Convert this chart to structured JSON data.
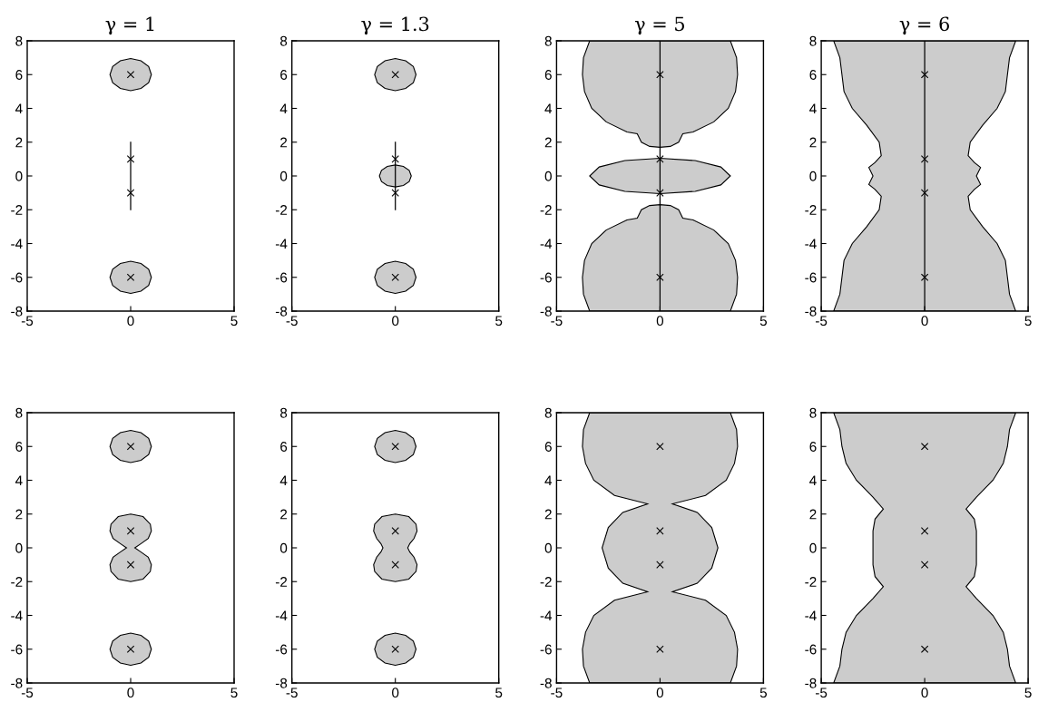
{
  "chart_data": [
    {
      "type": "area",
      "title": "γ = 1",
      "xlim": [
        -5,
        5
      ],
      "ylim": [
        -8,
        8
      ],
      "xticks": [
        -5,
        0,
        5
      ],
      "yticks": [
        -8,
        -6,
        -4,
        -2,
        0,
        2,
        4,
        6,
        8
      ],
      "grid": false,
      "series": [
        {
          "type": "area",
          "color": "#cccccc",
          "x": [
            1,
            0.87,
            0.5,
            0,
            -0.5,
            -0.87,
            -1,
            -0.87,
            -0.5,
            0,
            0.5,
            0.87
          ],
          "values": [
            6,
            6.48,
            6.82,
            6.95,
            6.82,
            6.48,
            6,
            5.52,
            5.18,
            5.05,
            5.18,
            5.52
          ]
        },
        {
          "type": "area",
          "color": "#cccccc",
          "x": [
            1,
            0.87,
            0.5,
            0,
            -0.5,
            -0.87,
            -1,
            -0.87,
            -0.5,
            0,
            0.5,
            0.87
          ],
          "values": [
            -6,
            -5.52,
            -5.18,
            -5.05,
            -5.18,
            -5.52,
            -6,
            -6.48,
            -6.82,
            -6.95,
            -6.82,
            -6.48
          ]
        },
        {
          "type": "line",
          "color": "#000000",
          "x": [
            0,
            0
          ],
          "values": [
            -2,
            2
          ]
        },
        {
          "type": "scatter",
          "color": "#000000",
          "marker": "cross",
          "x": [
            0,
            0,
            0,
            0
          ],
          "values": [
            6,
            1,
            -1,
            -6
          ]
        }
      ]
    },
    {
      "type": "area",
      "title": "γ = 1.3",
      "xlim": [
        -5,
        5
      ],
      "ylim": [
        -8,
        8
      ],
      "xticks": [
        -5,
        0,
        5
      ],
      "yticks": [
        -8,
        -6,
        -4,
        -2,
        0,
        2,
        4,
        6,
        8
      ],
      "grid": false,
      "series": [
        {
          "type": "area",
          "color": "#cccccc",
          "x": [
            1,
            0.87,
            0.5,
            0,
            -0.5,
            -0.87,
            -1,
            -0.87,
            -0.5,
            0,
            0.5,
            0.87
          ],
          "values": [
            6,
            6.48,
            6.82,
            6.95,
            6.82,
            6.48,
            6,
            5.52,
            5.18,
            5.05,
            5.18,
            5.52
          ]
        },
        {
          "type": "area",
          "color": "#cccccc",
          "x": [
            1,
            0.87,
            0.5,
            0,
            -0.5,
            -0.87,
            -1,
            -0.87,
            -0.5,
            0,
            0.5,
            0.87
          ],
          "values": [
            -6,
            -5.52,
            -5.18,
            -5.05,
            -5.18,
            -5.52,
            -6,
            -6.48,
            -6.82,
            -6.95,
            -6.82,
            -6.48
          ]
        },
        {
          "type": "area",
          "color": "#cccccc",
          "x": [
            0.77,
            0.67,
            0.39,
            0,
            -0.39,
            -0.67,
            -0.77,
            -0.67,
            -0.39,
            0,
            0.39,
            0.67
          ],
          "values": [
            0,
            0.33,
            0.56,
            0.65,
            0.56,
            0.33,
            0,
            -0.33,
            -0.56,
            -0.65,
            -0.56,
            -0.33
          ]
        },
        {
          "type": "line",
          "color": "#000000",
          "x": [
            0,
            0
          ],
          "values": [
            -2,
            2
          ]
        },
        {
          "type": "scatter",
          "color": "#000000",
          "marker": "cross",
          "x": [
            0,
            0,
            0,
            0
          ],
          "values": [
            6,
            1,
            -1,
            -6
          ]
        }
      ]
    },
    {
      "type": "area",
      "title": "γ = 5",
      "xlim": [
        -5,
        5
      ],
      "ylim": [
        -8,
        8
      ],
      "xticks": [
        -5,
        0,
        5
      ],
      "yticks": [
        -8,
        -6,
        -4,
        -2,
        0,
        2,
        4,
        6,
        8
      ],
      "grid": false,
      "series": [
        {
          "type": "area",
          "color": "#cccccc",
          "x": [
            3.4,
            3.7,
            3.75,
            3.65,
            3.3,
            2.6,
            1.6,
            1.1,
            0.9,
            0.5,
            0,
            -0.5,
            -0.9,
            -1.1,
            -1.6,
            -2.6,
            -3.3,
            -3.65,
            -3.75,
            -3.7,
            -3.4
          ],
          "values": [
            8,
            7,
            6,
            5,
            4,
            3.2,
            2.6,
            2.5,
            2.0,
            1.75,
            1.7,
            1.75,
            2.0,
            2.5,
            2.6,
            3.2,
            4,
            5,
            6,
            7,
            8
          ]
        },
        {
          "type": "area",
          "color": "#cccccc",
          "x": [
            3.4,
            2.94,
            1.7,
            0,
            -1.7,
            -2.94,
            -3.4,
            -2.94,
            -1.7,
            0,
            1.7,
            2.94
          ],
          "values": [
            0,
            0.53,
            0.91,
            1.05,
            0.91,
            0.53,
            0,
            -0.53,
            -0.91,
            -1.05,
            -0.91,
            -0.53
          ]
        },
        {
          "type": "area",
          "color": "#cccccc",
          "x": [
            3.4,
            3.7,
            3.75,
            3.65,
            3.3,
            2.6,
            1.6,
            1.1,
            0.9,
            0.5,
            0,
            -0.5,
            -0.9,
            -1.1,
            -1.6,
            -2.6,
            -3.3,
            -3.65,
            -3.75,
            -3.7,
            -3.4
          ],
          "values": [
            -8,
            -7,
            -6,
            -5,
            -4,
            -3.2,
            -2.6,
            -2.5,
            -2.0,
            -1.75,
            -1.7,
            -1.75,
            -2.0,
            -2.5,
            -2.6,
            -3.2,
            -4,
            -5,
            -6,
            -7,
            -8
          ]
        },
        {
          "type": "scatter",
          "color": "#000000",
          "marker": "cross",
          "x": [
            0,
            0,
            0,
            0
          ],
          "values": [
            6,
            1,
            -1,
            -6
          ]
        }
      ],
      "ref_lines": [
        {
          "axis": "x",
          "value": 0,
          "color": "#000000"
        }
      ]
    },
    {
      "type": "area",
      "title": "γ = 6",
      "xlim": [
        -5,
        5
      ],
      "ylim": [
        -8,
        8
      ],
      "xticks": [
        -5,
        0,
        5
      ],
      "yticks": [
        -8,
        -6,
        -4,
        -2,
        0,
        2,
        4,
        6,
        8
      ],
      "grid": false,
      "series": [
        {
          "type": "area",
          "color": "#cccccc",
          "x": [
            4.4,
            4.1,
            4.0,
            3.9,
            3.5,
            2.8,
            2.2,
            2.1,
            2.4,
            2.7,
            2.5,
            2.7,
            2.4,
            2.1,
            2.2,
            2.8,
            3.5,
            3.9,
            4.0,
            4.1,
            4.4,
            -4.4,
            -4.1,
            -4.0,
            -3.9,
            -3.5,
            -2.8,
            -2.2,
            -2.1,
            -2.4,
            -2.7,
            -2.5,
            -2.7,
            -2.4,
            -2.1,
            -2.2,
            -2.8,
            -3.5,
            -3.9,
            -4.0,
            -4.1,
            -4.4
          ],
          "values": [
            8,
            7,
            6,
            5,
            4,
            3,
            2,
            1.2,
            0.8,
            0.5,
            0,
            -0.5,
            -0.8,
            -1.2,
            -2,
            -3,
            -4,
            -5,
            -6,
            -7,
            -8,
            -8,
            -7,
            -6,
            -5,
            -4,
            -3,
            -2,
            -1.2,
            -0.8,
            -0.5,
            0,
            0.5,
            0.8,
            1.2,
            2,
            3,
            4,
            5,
            6,
            7,
            8
          ]
        },
        {
          "type": "scatter",
          "color": "#000000",
          "marker": "cross",
          "x": [
            0,
            0,
            0,
            0
          ],
          "values": [
            6,
            1,
            -1,
            -6
          ]
        }
      ],
      "ref_lines": [
        {
          "axis": "x",
          "value": 0,
          "color": "#000000"
        }
      ]
    },
    {
      "type": "area",
      "xlim": [
        -5,
        5
      ],
      "ylim": [
        -8,
        8
      ],
      "xticks": [
        -5,
        0,
        5
      ],
      "yticks": [
        -8,
        -6,
        -4,
        -2,
        0,
        2,
        4,
        6,
        8
      ],
      "grid": false,
      "series": [
        {
          "type": "area",
          "color": "#cccccc",
          "x": [
            1,
            0.87,
            0.5,
            0,
            -0.5,
            -0.87,
            -1,
            -0.87,
            -0.5,
            0,
            0.5,
            0.87
          ],
          "values": [
            6,
            6.48,
            6.82,
            6.95,
            6.82,
            6.48,
            6,
            5.52,
            5.18,
            5.05,
            5.18,
            5.52
          ]
        },
        {
          "type": "area",
          "color": "#cccccc",
          "x": [
            1,
            0.87,
            0.5,
            0,
            -0.5,
            -0.87,
            -1,
            -0.87,
            -0.5,
            0,
            0.5,
            0.87
          ],
          "values": [
            -6,
            -5.52,
            -5.18,
            -5.05,
            -5.18,
            -5.52,
            -6,
            -6.48,
            -6.82,
            -6.95,
            -6.82,
            -6.48
          ]
        },
        {
          "type": "area",
          "color": "#cccccc",
          "x": [
            0,
            0.6,
            0.95,
            1.0,
            0.85,
            0.5,
            0.2,
            0.5,
            0.85,
            1.0,
            0.95,
            0.6,
            0,
            -0.6,
            -0.95,
            -1.0,
            -0.85,
            -0.5,
            -0.2,
            -0.5,
            -0.85,
            -1.0,
            -0.95,
            -0.6
          ],
          "values": [
            2.0,
            1.85,
            1.4,
            1.0,
            0.55,
            0.25,
            0,
            -0.25,
            -0.55,
            -1.0,
            -1.4,
            -1.85,
            -2.0,
            -1.85,
            -1.4,
            -1.0,
            -0.55,
            -0.25,
            0,
            0.25,
            0.55,
            1.0,
            1.4,
            1.85
          ]
        },
        {
          "type": "scatter",
          "color": "#000000",
          "marker": "cross",
          "x": [
            0,
            0,
            0,
            0
          ],
          "values": [
            6,
            1,
            -1,
            -6
          ]
        }
      ]
    },
    {
      "type": "area",
      "xlim": [
        -5,
        5
      ],
      "ylim": [
        -8,
        8
      ],
      "xticks": [
        -5,
        0,
        5
      ],
      "yticks": [
        -8,
        -6,
        -4,
        -2,
        0,
        2,
        4,
        6,
        8
      ],
      "grid": false,
      "series": [
        {
          "type": "area",
          "color": "#cccccc",
          "x": [
            1,
            0.87,
            0.5,
            0,
            -0.5,
            -0.87,
            -1,
            -0.87,
            -0.5,
            0,
            0.5,
            0.87
          ],
          "values": [
            6,
            6.48,
            6.82,
            6.95,
            6.82,
            6.48,
            6,
            5.52,
            5.18,
            5.05,
            5.18,
            5.52
          ]
        },
        {
          "type": "area",
          "color": "#cccccc",
          "x": [
            1,
            0.87,
            0.5,
            0,
            -0.5,
            -0.87,
            -1,
            -0.87,
            -0.5,
            0,
            0.5,
            0.87
          ],
          "values": [
            -6,
            -5.52,
            -5.18,
            -5.05,
            -5.18,
            -5.52,
            -6,
            -6.48,
            -6.82,
            -6.95,
            -6.82,
            -6.48
          ]
        },
        {
          "type": "area",
          "color": "#cccccc",
          "x": [
            0,
            0.65,
            1.0,
            1.05,
            0.9,
            0.7,
            0.6,
            0.7,
            0.9,
            1.05,
            1.0,
            0.65,
            0,
            -0.65,
            -1.0,
            -1.05,
            -0.9,
            -0.7,
            -0.6,
            -0.7,
            -0.9,
            -1.05,
            -1.0,
            -0.65
          ],
          "values": [
            2.0,
            1.85,
            1.4,
            1.0,
            0.55,
            0.25,
            0,
            -0.25,
            -0.55,
            -1.0,
            -1.4,
            -1.85,
            -2.0,
            -1.85,
            -1.4,
            -1.0,
            -0.55,
            -0.25,
            0,
            0.25,
            0.55,
            1.0,
            1.4,
            1.85
          ]
        },
        {
          "type": "scatter",
          "color": "#000000",
          "marker": "cross",
          "x": [
            0,
            0,
            0,
            0
          ],
          "values": [
            6,
            1,
            -1,
            -6
          ]
        }
      ]
    },
    {
      "type": "area",
      "xlim": [
        -5,
        5
      ],
      "ylim": [
        -8,
        8
      ],
      "xticks": [
        -5,
        0,
        5
      ],
      "yticks": [
        -8,
        -6,
        -4,
        -2,
        0,
        2,
        4,
        6,
        8
      ],
      "grid": false,
      "series": [
        {
          "type": "area",
          "color": "#cccccc",
          "x": [
            3.4,
            3.7,
            3.75,
            3.6,
            3.2,
            2.2,
            0.6,
            1.8,
            2.5,
            2.8,
            2.5,
            1.8,
            0.6,
            2.2,
            3.2,
            3.6,
            3.75,
            3.7,
            3.4,
            -3.4,
            -3.7,
            -3.75,
            -3.6,
            -3.2,
            -2.2,
            -0.6,
            -1.8,
            -2.5,
            -2.8,
            -2.5,
            -1.8,
            -0.6,
            -2.2,
            -3.2,
            -3.6,
            -3.75,
            -3.7,
            -3.4
          ],
          "values": [
            8,
            7,
            6,
            5,
            4,
            3.1,
            2.6,
            2.1,
            1.2,
            0,
            -1.2,
            -2.1,
            -2.6,
            -3.1,
            -4,
            -5,
            -6,
            -7,
            -8,
            -8,
            -7,
            -6,
            -5,
            -4,
            -3.1,
            -2.6,
            -2.1,
            -1.2,
            0,
            1.2,
            2.1,
            2.6,
            3.1,
            4,
            5,
            6,
            7,
            8
          ]
        },
        {
          "type": "scatter",
          "color": "#000000",
          "marker": "cross",
          "x": [
            0,
            0,
            0,
            0
          ],
          "values": [
            6,
            1,
            -1,
            -6
          ]
        }
      ]
    },
    {
      "type": "area",
      "xlim": [
        -5,
        5
      ],
      "ylim": [
        -8,
        8
      ],
      "xticks": [
        -5,
        0,
        5
      ],
      "yticks": [
        -8,
        -6,
        -4,
        -2,
        0,
        2,
        4,
        6,
        8
      ],
      "grid": false,
      "series": [
        {
          "type": "area",
          "color": "#cccccc",
          "x": [
            4.4,
            4.1,
            4.0,
            3.8,
            3.3,
            2.5,
            2.0,
            2.4,
            2.5,
            2.5,
            2.5,
            2.4,
            2.0,
            2.5,
            3.3,
            3.8,
            4.0,
            4.1,
            4.4,
            -4.4,
            -4.1,
            -4.0,
            -3.8,
            -3.3,
            -2.5,
            -2.0,
            -2.4,
            -2.5,
            -2.5,
            -2.5,
            -2.4,
            -2.0,
            -2.5,
            -3.3,
            -3.8,
            -4.0,
            -4.1,
            -4.4
          ],
          "values": [
            8,
            7,
            6,
            5,
            4,
            3,
            2.3,
            1.7,
            1.0,
            0,
            -1.0,
            -1.7,
            -2.3,
            -3,
            -4,
            -5,
            -6,
            -7,
            -8,
            -8,
            -7,
            -6,
            -5,
            -4,
            -3,
            -2.3,
            -1.7,
            -1.0,
            0,
            1.0,
            1.7,
            2.3,
            3,
            4,
            5,
            6,
            7,
            8
          ]
        },
        {
          "type": "scatter",
          "color": "#000000",
          "marker": "cross",
          "x": [
            0,
            0,
            0,
            0
          ],
          "values": [
            6,
            1,
            -1,
            -6
          ]
        }
      ]
    }
  ]
}
